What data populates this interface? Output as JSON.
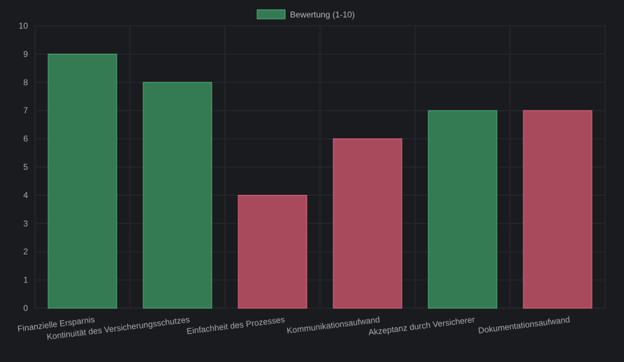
{
  "chart_data": {
    "type": "bar",
    "categories": [
      "Finanzielle Ersparnis",
      "Kontinuität des Versicherungsschutzes",
      "Einfachheit des Prozesses",
      "Kommunikationsaufwand",
      "Akzeptanz durch Versicherer",
      "Dokumentationsaufwand"
    ],
    "series": [
      {
        "name": "Bewertung (1-10)",
        "values": [
          9,
          8,
          4,
          6,
          7,
          7
        ]
      }
    ],
    "bar_colors": [
      "#347a52",
      "#347a52",
      "#a84a5c",
      "#a84a5c",
      "#347a52",
      "#a84a5c"
    ],
    "bar_border_colors": [
      "#4fb07a",
      "#4fb07a",
      "#e06a80",
      "#e06a80",
      "#4fb07a",
      "#e06a80"
    ],
    "legend_color": "#347a52",
    "legend_border_color": "#4fb07a",
    "yticks": [
      0,
      1,
      2,
      3,
      4,
      5,
      6,
      7,
      8,
      9,
      10
    ],
    "ylim": [
      0,
      10
    ],
    "grid": true,
    "legend_position": "top-center"
  }
}
